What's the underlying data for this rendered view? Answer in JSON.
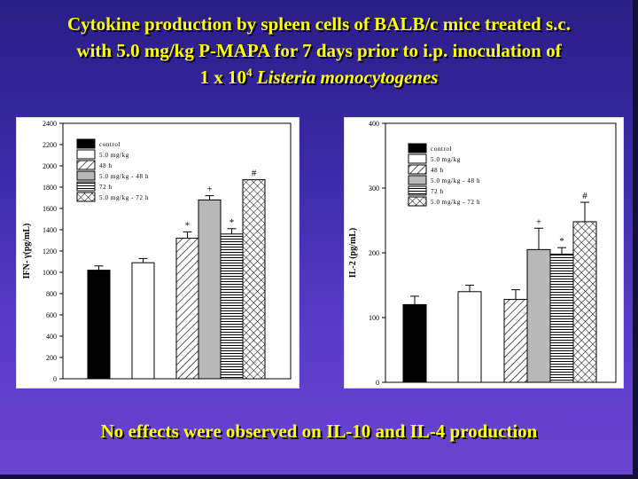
{
  "slide": {
    "title_line1": "Cytokine production by spleen cells of BALB/c mice treated s.c.",
    "title_line2": "with 5.0 mg/kg P-MAPA for 7 days prior to i.p. inoculation of",
    "title_line3_pre": "1 x 10",
    "title_line3_sup": "4",
    "title_line3_italic": "Listeria monocytogenes",
    "footnote": "No effects were observed on IL-10 and IL-4 production"
  },
  "chart_data": [
    {
      "type": "bar",
      "ylabel": "IFN- γ(pg/mL)",
      "ylim": [
        0,
        2400
      ],
      "yticks": [
        0,
        200,
        400,
        600,
        800,
        1000,
        1200,
        1400,
        1600,
        1800,
        2000,
        2200,
        2400
      ],
      "legend": [
        "control",
        "5.0 mg/kg",
        "48 h",
        "5.0 mg/kg - 48 h",
        "72 h",
        "5.0 mg/kg - 72 h"
      ],
      "categories": [
        "control",
        "5.0 mg/kg",
        "48 h",
        "5.0 mg/kg - 48 h",
        "72 h",
        "5.0 mg/kg - 72 h"
      ],
      "values": [
        1020,
        1090,
        1320,
        1680,
        1360,
        1870
      ],
      "errors": [
        40,
        40,
        60,
        40,
        50,
        0
      ],
      "markers": [
        "",
        "",
        "*",
        "+",
        "*",
        "#"
      ]
    },
    {
      "type": "bar",
      "ylabel": "IL-2 (pg/mL)",
      "ylim": [
        0,
        400
      ],
      "yticks": [
        0,
        100,
        200,
        300,
        400
      ],
      "legend": [
        "control",
        "5.0 mg/kg",
        "48 h",
        "5.0 mg/kg - 48 h",
        "72 h",
        "5.0 mg/kg - 72 h"
      ],
      "categories": [
        "control",
        "5.0 mg/kg",
        "48 h",
        "5.0 mg/kg - 48 h",
        "72 h",
        "5.0 mg/kg - 72 h"
      ],
      "values": [
        120,
        140,
        128,
        205,
        198,
        248
      ],
      "errors": [
        13,
        10,
        15,
        33,
        10,
        30
      ],
      "markers": [
        "",
        "",
        "",
        "+",
        "*",
        "#"
      ]
    }
  ]
}
